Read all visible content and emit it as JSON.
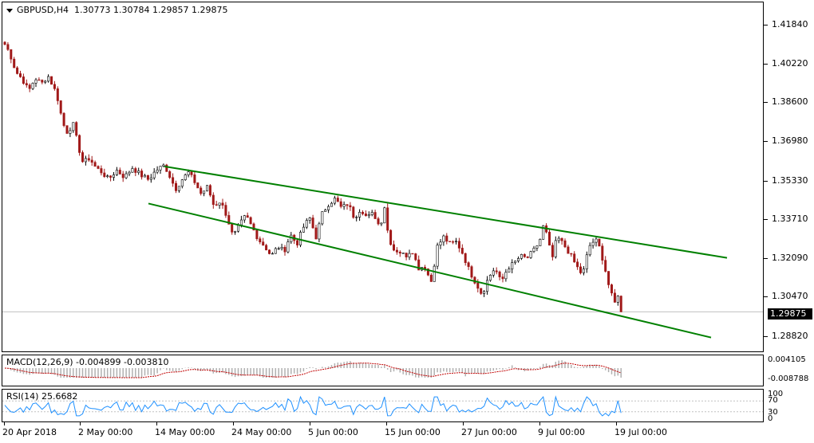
{
  "header": {
    "symbol": "GBPUSD,H4",
    "open": "1.30773",
    "high": "1.30784",
    "low": "1.29857",
    "close": "1.29875"
  },
  "price_axis": [
    "1.41840",
    "1.40220",
    "1.38600",
    "1.36980",
    "1.35330",
    "1.33710",
    "1.32090",
    "1.30470",
    "1.28820"
  ],
  "current_price": "1.29875",
  "time_axis": [
    "20 Apr 2018",
    "2 May 00:00",
    "14 May 00:00",
    "24 May 00:00",
    "5 Jun 00:00",
    "15 Jun 00:00",
    "27 Jun 00:00",
    "9 Jul 00:00",
    "19 Jul 00:00"
  ],
  "macd": {
    "label": "MACD(12,26,9) -0.004899 -0.003810",
    "axis": [
      "0.004105",
      "-0.008788"
    ]
  },
  "rsi": {
    "label": "RSI(14) 25.6682",
    "axis": [
      "100",
      "70",
      "30",
      "0"
    ],
    "value": 25.6682
  },
  "colors": {
    "up_candle": "#000000",
    "down_candle": "#a01818",
    "channel": "#008000",
    "macd_hist": "#b0b0b0",
    "macd_signal": "#c00000",
    "rsi_line": "#1e90ff"
  },
  "chart_data": {
    "type": "candlestick",
    "symbol": "GBPUSD",
    "timeframe": "H4",
    "ylim": [
      1.281,
      1.425
    ],
    "path": [
      [
        0,
        1.4105
      ],
      [
        6,
        1.407
      ],
      [
        14,
        1.399
      ],
      [
        22,
        1.396
      ],
      [
        30,
        1.391
      ],
      [
        38,
        1.3965
      ],
      [
        46,
        1.394
      ],
      [
        54,
        1.3975
      ],
      [
        62,
        1.392
      ],
      [
        68,
        1.386
      ],
      [
        72,
        1.378
      ],
      [
        78,
        1.374
      ],
      [
        86,
        1.377
      ],
      [
        92,
        1.368
      ],
      [
        98,
        1.361
      ],
      [
        106,
        1.363
      ],
      [
        114,
        1.359
      ],
      [
        122,
        1.357
      ],
      [
        130,
        1.354
      ],
      [
        140,
        1.358
      ],
      [
        150,
        1.355
      ],
      [
        160,
        1.359
      ],
      [
        170,
        1.356
      ],
      [
        180,
        1.354
      ],
      [
        190,
        1.358
      ],
      [
        200,
        1.36
      ],
      [
        206,
        1.356
      ],
      [
        214,
        1.35
      ],
      [
        222,
        1.354
      ],
      [
        230,
        1.357
      ],
      [
        238,
        1.353
      ],
      [
        246,
        1.348
      ],
      [
        254,
        1.351
      ],
      [
        262,
        1.343
      ],
      [
        270,
        1.345
      ],
      [
        278,
        1.339
      ],
      [
        286,
        1.33
      ],
      [
        294,
        1.335
      ],
      [
        302,
        1.339
      ],
      [
        310,
        1.334
      ],
      [
        318,
        1.329
      ],
      [
        326,
        1.326
      ],
      [
        334,
        1.322
      ],
      [
        342,
        1.326
      ],
      [
        350,
        1.324
      ],
      [
        358,
        1.331
      ],
      [
        366,
        1.327
      ],
      [
        374,
        1.334
      ],
      [
        382,
        1.338
      ],
      [
        390,
        1.33
      ],
      [
        398,
        1.34
      ],
      [
        406,
        1.344
      ],
      [
        414,
        1.346
      ],
      [
        422,
        1.342
      ],
      [
        430,
        1.344
      ],
      [
        438,
        1.338
      ],
      [
        446,
        1.342
      ],
      [
        454,
        1.338
      ],
      [
        462,
        1.34
      ],
      [
        470,
        1.334
      ],
      [
        476,
        1.343
      ],
      [
        480,
        1.332
      ],
      [
        486,
        1.325
      ],
      [
        494,
        1.324
      ],
      [
        502,
        1.322
      ],
      [
        510,
        1.325
      ],
      [
        518,
        1.317
      ],
      [
        526,
        1.318
      ],
      [
        534,
        1.311
      ],
      [
        542,
        1.326
      ],
      [
        550,
        1.33
      ],
      [
        558,
        1.327
      ],
      [
        566,
        1.328
      ],
      [
        574,
        1.323
      ],
      [
        582,
        1.316
      ],
      [
        590,
        1.311
      ],
      [
        598,
        1.306
      ],
      [
        606,
        1.313
      ],
      [
        614,
        1.317
      ],
      [
        622,
        1.311
      ],
      [
        630,
        1.317
      ],
      [
        638,
        1.319
      ],
      [
        646,
        1.322
      ],
      [
        654,
        1.321
      ],
      [
        662,
        1.324
      ],
      [
        670,
        1.328
      ],
      [
        676,
        1.336
      ],
      [
        680,
        1.329
      ],
      [
        686,
        1.321
      ],
      [
        692,
        1.33
      ],
      [
        700,
        1.327
      ],
      [
        708,
        1.323
      ],
      [
        716,
        1.318
      ],
      [
        724,
        1.314
      ],
      [
        732,
        1.326
      ],
      [
        740,
        1.329
      ],
      [
        746,
        1.325
      ],
      [
        752,
        1.317
      ],
      [
        758,
        1.308
      ],
      [
        764,
        1.302
      ],
      [
        770,
        1.3077
      ],
      [
        775,
        1.29875
      ]
    ],
    "channel_upper": [
      [
        203,
        1.3595
      ],
      [
        908,
        1.3213
      ]
    ],
    "channel_lower": [
      [
        183,
        1.344
      ],
      [
        888,
        1.288
      ]
    ]
  }
}
